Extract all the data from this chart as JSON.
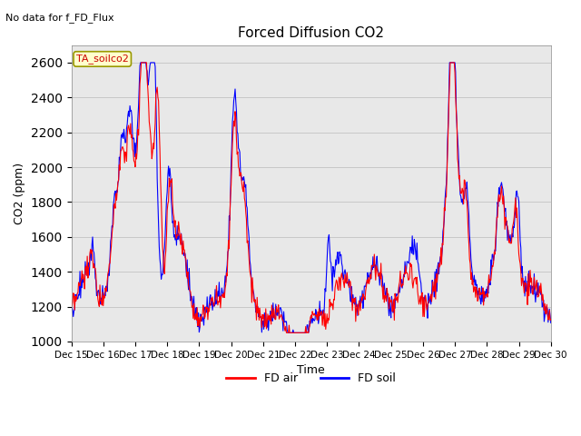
{
  "title": "Forced Diffusion CO2",
  "xlabel": "Time",
  "ylabel": "CO2 (ppm)",
  "ylim": [
    1000,
    2700
  ],
  "xlim": [
    0,
    360
  ],
  "annotation_text": "No data for f_FD_Flux",
  "legend_label_text": "TA_soilco2",
  "legend_entries": [
    "FD air",
    "FD soil"
  ],
  "legend_colors": [
    "#ff0000",
    "#0000ff"
  ],
  "background_color": "#e8e8e8",
  "x_tick_labels": [
    "Dec 15",
    "Dec 16",
    "Dec 17",
    "Dec 18",
    "Dec 19",
    "Dec 20",
    "Dec 21",
    "Dec 22",
    "Dec 23",
    "Dec 24",
    "Dec 25",
    "Dec 26",
    "Dec 27",
    "Dec 28",
    "Dec 29",
    "Dec 30"
  ],
  "x_tick_positions": [
    0,
    24,
    48,
    72,
    96,
    120,
    144,
    168,
    192,
    216,
    240,
    264,
    288,
    312,
    336,
    360
  ],
  "y_tick_values": [
    1000,
    1200,
    1400,
    1600,
    1800,
    2000,
    2200,
    2400,
    2600
  ],
  "grid_color": "#d0d0d0",
  "line_width": 0.8,
  "figsize": [
    6.4,
    4.8
  ],
  "dpi": 100
}
